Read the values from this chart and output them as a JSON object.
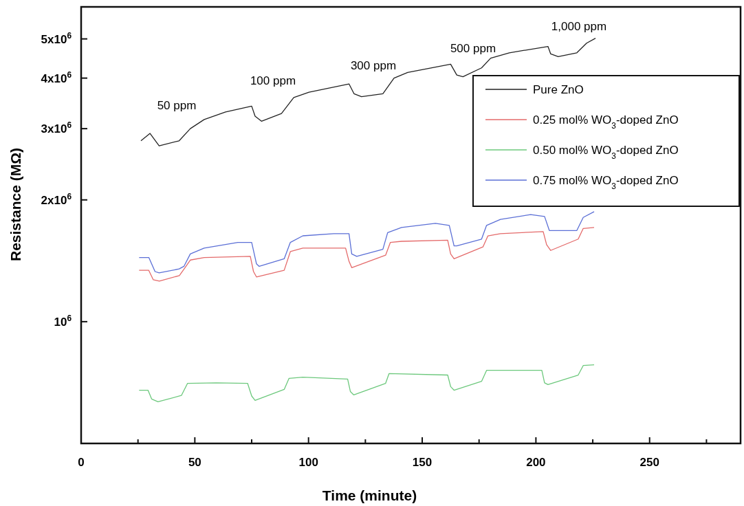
{
  "chart_data": {
    "type": "line",
    "xlabel": "Time (minute)",
    "ylabel": "Resistance  (MΩ)",
    "log": "y",
    "grid": false,
    "legend": "top right",
    "line_style": "solid",
    "marker": "none",
    "xlim": [
      0,
      290
    ],
    "xticks": [
      0,
      {
        "value": 25,
        "label": null
      },
      50,
      {
        "value": 75,
        "label": null
      },
      100,
      {
        "value": 125,
        "label": null
      },
      150,
      {
        "value": 175,
        "label": null
      },
      200,
      {
        "value": 225,
        "label": null
      },
      250,
      {
        "value": 275,
        "label": null
      }
    ],
    "ylim": [
      500000,
      6000000
    ],
    "yticks": [
      {
        "value": 1000000,
        "label": "10$^{6}$"
      },
      {
        "value": 2000000,
        "label": "2x10$^{6}$"
      },
      {
        "value": 3000000,
        "label": "3x10$^{6}$"
      },
      {
        "value": 4000000,
        "label": "4x10$^{6}$"
      },
      {
        "value": 5000000,
        "label": "5x10$^{6}$"
      }
    ],
    "annotations": [
      "50 ppm",
      "100 ppm",
      "300 ppm",
      "500 ppm",
      "1,000 ppm"
    ],
    "series": [
      {
        "name": "Pure ZnO",
        "color": "#222222",
        "x": [
          26.3,
          30.3,
          34.3,
          43.1,
          48.0,
          54.1,
          63.5,
          75.0,
          76.5,
          79.3,
          88.1,
          93.5,
          100.2,
          117.8,
          120.0,
          123.3,
          132.7,
          137.6,
          143.6,
          162.5,
          165.2,
          167.9,
          176.1,
          180.1,
          188.3,
          205.3,
          206.5,
          209.8,
          218.0,
          222.3,
          226.2
        ],
        "values": [
          2800000,
          2920000,
          2720000,
          2800000,
          3000000,
          3160000,
          3300000,
          3410000,
          3220000,
          3130000,
          3270000,
          3580000,
          3690000,
          3870000,
          3660000,
          3600000,
          3660000,
          4000000,
          4130000,
          4330000,
          4070000,
          4030000,
          4240000,
          4480000,
          4620000,
          4790000,
          4590000,
          4520000,
          4620000,
          4880000,
          5020000
        ]
      },
      {
        "name": "0.25 mol% WO$_{3}$-doped ZnO",
        "color": "#e46a6a",
        "x": [
          25.5,
          29.7,
          31.7,
          34.4,
          43.2,
          45.3,
          48.0,
          54.1,
          74.4,
          75.8,
          77.1,
          89.3,
          92.0,
          97.5,
          116.3,
          117.8,
          119.0,
          133.9,
          136.0,
          140.9,
          161.2,
          162.5,
          164.0,
          176.7,
          178.9,
          184.4,
          203.2,
          204.7,
          206.5,
          218.6,
          220.8,
          225.6
        ],
        "values": [
          1340000,
          1340000,
          1270000,
          1260000,
          1300000,
          1350000,
          1420000,
          1440000,
          1450000,
          1330000,
          1290000,
          1340000,
          1490000,
          1520000,
          1520000,
          1410000,
          1360000,
          1460000,
          1570000,
          1580000,
          1590000,
          1470000,
          1430000,
          1530000,
          1630000,
          1650000,
          1670000,
          1550000,
          1500000,
          1600000,
          1700000,
          1710000
        ]
      },
      {
        "name": "0.50 mol% WO$_{3}$-doped ZnO",
        "color": "#6cc87c",
        "x": [
          25.5,
          29.4,
          31.0,
          33.8,
          44.1,
          46.8,
          59.5,
          73.2,
          75.0,
          76.5,
          89.3,
          91.4,
          97.5,
          117.2,
          118.4,
          119.9,
          133.9,
          135.4,
          161.2,
          162.5,
          164.0,
          176.1,
          178.3,
          202.6,
          203.8,
          205.3,
          218.6,
          220.8,
          225.6
        ],
        "values": [
          677000,
          677000,
          644000,
          634000,
          657000,
          704000,
          706000,
          704000,
          655000,
          639000,
          680000,
          724000,
          729000,
          721000,
          672000,
          659000,
          704000,
          744000,
          738000,
          691000,
          677000,
          712000,
          758000,
          758000,
          706000,
          699000,
          738000,
          779000,
          782000
        ]
      },
      {
        "name": "0.75 mol% WO$_{3}$-doped ZnO",
        "color": "#5b6fd6",
        "x": [
          25.5,
          29.8,
          32.5,
          34.3,
          43.1,
          45.2,
          48.0,
          54.1,
          68.9,
          75.0,
          77.1,
          78.3,
          89.3,
          92.0,
          97.5,
          111.1,
          117.8,
          119.0,
          121.2,
          132.7,
          134.8,
          140.9,
          155.8,
          161.9,
          164.0,
          165.2,
          176.1,
          178.3,
          184.4,
          197.7,
          203.8,
          205.9,
          207.4,
          218.0,
          220.8,
          225.6
        ],
        "values": [
          1440000,
          1440000,
          1330000,
          1320000,
          1350000,
          1370000,
          1470000,
          1520000,
          1570000,
          1570000,
          1390000,
          1370000,
          1430000,
          1570000,
          1630000,
          1650000,
          1650000,
          1470000,
          1450000,
          1510000,
          1660000,
          1710000,
          1750000,
          1730000,
          1540000,
          1540000,
          1600000,
          1730000,
          1790000,
          1840000,
          1820000,
          1680000,
          1680000,
          1680000,
          1810000,
          1870000
        ]
      }
    ]
  }
}
